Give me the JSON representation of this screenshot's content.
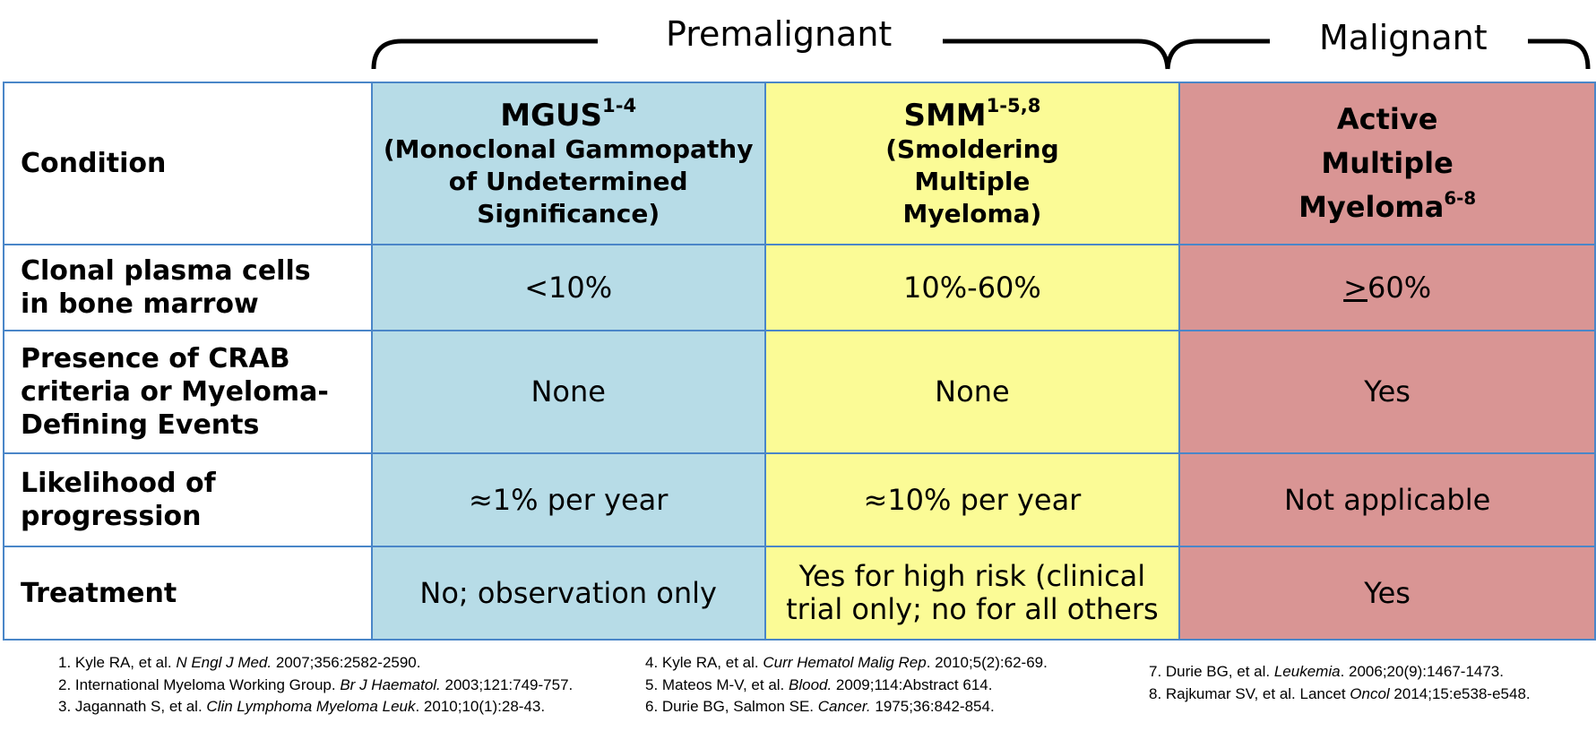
{
  "groups": {
    "premalignant": "Premalignant",
    "malignant": "Malignant"
  },
  "columns": {
    "mgus": {
      "title": "MGUS",
      "sup": "1-4",
      "subtitle_lines": [
        "(Monoclonal Gammopathy",
        "of Undetermined",
        "Significance)"
      ]
    },
    "smm": {
      "title": "SMM",
      "sup": "1-5,8",
      "subtitle_lines": [
        "(Smoldering",
        "Multiple",
        "Myeloma)"
      ]
    },
    "mm": {
      "title_lines": [
        "Active",
        "Multiple",
        "Myeloma"
      ],
      "sup": "6-8"
    }
  },
  "rows": {
    "condition": {
      "label": "Condition"
    },
    "plasma": {
      "label_lines": [
        "Clonal plasma cells",
        "in bone marrow"
      ],
      "mgus": "<10%",
      "smm": "10%-60%",
      "mm_symbol": ">",
      "mm_rest": "60%"
    },
    "crab": {
      "label_lines": [
        "Presence of CRAB",
        "criteria or Myeloma-",
        "Defining Events"
      ],
      "mgus": "None",
      "smm": "None",
      "mm": "Yes"
    },
    "progression": {
      "label_lines": [
        "Likelihood of",
        "progression"
      ],
      "mgus": "≈1% per year",
      "smm": "≈10% per year",
      "mm": "Not applicable"
    },
    "treatment": {
      "label": "Treatment",
      "mgus": "No; observation only",
      "smm_lines": [
        "Yes for high risk (clinical",
        "trial only; no for all others"
      ],
      "mm": "Yes"
    }
  },
  "references": [
    {
      "pre": "1. Kyle RA, et al. ",
      "journal": "N Engl J Med.",
      "post": " 2007;356:2582-2590."
    },
    {
      "pre": "2. International Myeloma Working Group. ",
      "journal": "Br J Haematol.",
      "post": " 2003;121:749-757."
    },
    {
      "pre": "3. Jagannath S, et al. ",
      "journal": "Clin Lymphoma Myeloma Leuk",
      "post": ". 2010;10(1):28-43."
    },
    {
      "pre": "4. Kyle RA, et al. ",
      "journal": "Curr Hematol Malig Rep",
      "post": ". 2010;5(2):62-69."
    },
    {
      "pre": "5. Mateos M-V, et al. ",
      "journal": "Blood.",
      "post": " 2009;114:Abstract 614."
    },
    {
      "pre": "6. Durie BG, Salmon SE. ",
      "journal": "Cancer.",
      "post": " 1975;36:842-854."
    },
    {
      "pre": "7. Durie BG, et al. ",
      "journal": "Leukemia",
      "post": ". 2006;20(9):1467-1473."
    },
    {
      "pre": "8. Rajkumar SV, et al. Lancet ",
      "journal": "Oncol",
      "post": " 2014;15:e538-e548."
    }
  ],
  "colors": {
    "mgus": "#b7dce7",
    "smm": "#fbfb96",
    "mm": "#d99594",
    "border": "#4a86c8"
  }
}
